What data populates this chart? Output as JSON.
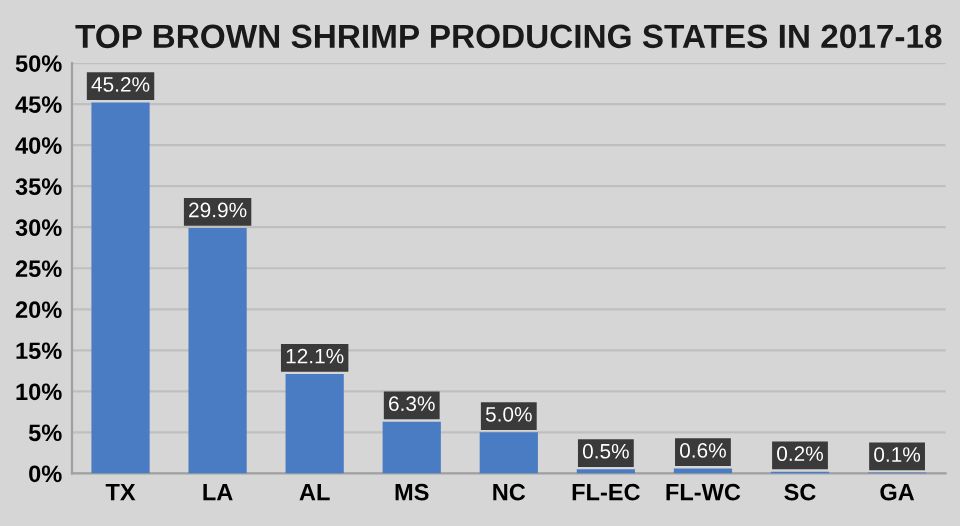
{
  "chart_data": {
    "type": "bar",
    "title": "TOP BROWN SHRIMP PRODUCING STATES IN 2017-18",
    "categories": [
      "TX",
      "LA",
      "AL",
      "MS",
      "NC",
      "FL-EC",
      "FL-WC",
      "SC",
      "GA"
    ],
    "values": [
      45.2,
      29.9,
      12.1,
      6.3,
      5.0,
      0.5,
      0.6,
      0.2,
      0.1
    ],
    "value_labels": [
      "45.2%",
      "29.9%",
      "12.1%",
      "6.3%",
      "5.0%",
      "0.5%",
      "0.6%",
      "0.2%",
      "0.1%"
    ],
    "color": "#4a7cc4",
    "ylim": [
      0,
      50
    ],
    "yticks": [
      {
        "value": 0,
        "label": "0%"
      },
      {
        "value": 5,
        "label": "5%"
      },
      {
        "value": 10,
        "label": "10%"
      },
      {
        "value": 15,
        "label": "15%"
      },
      {
        "value": 20,
        "label": "20%"
      },
      {
        "value": 25,
        "label": "25%"
      },
      {
        "value": 30,
        "label": "30%"
      },
      {
        "value": 35,
        "label": "35%"
      },
      {
        "value": 40,
        "label": "40%"
      },
      {
        "value": 45,
        "label": "45%"
      },
      {
        "value": 50,
        "label": "50%"
      }
    ],
    "grid": "y"
  }
}
